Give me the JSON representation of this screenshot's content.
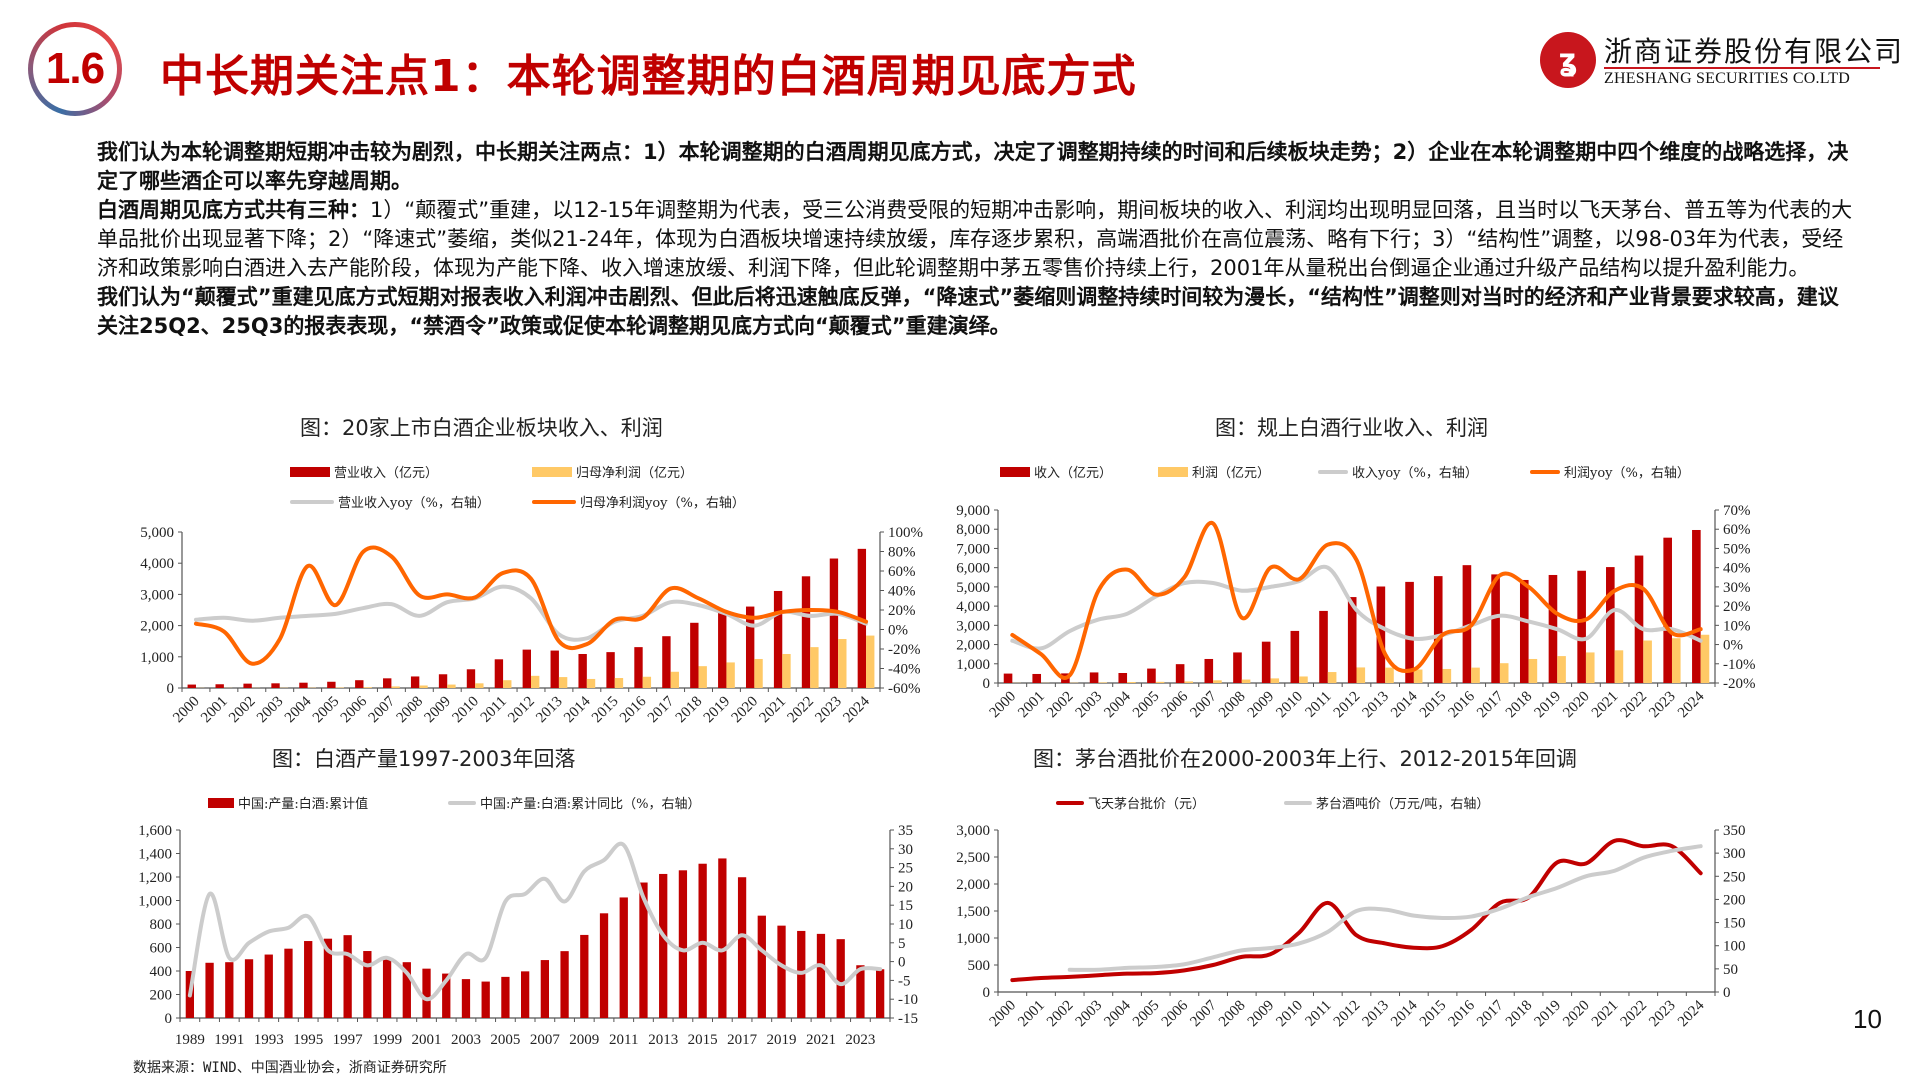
{
  "header": {
    "section_number": "1.6",
    "title": "中长期关注点1：本轮调整期的白酒周期见底方式",
    "logo_cn": "浙商证券股份有限公司",
    "logo_en": "ZHESHANG SECURITIES CO.LTD",
    "logo_icon": "zheshang-logo-icon",
    "accent_color": "#c00000"
  },
  "body": {
    "p1": "我们认为本轮调整期短期冲击较为剧烈，中长期关注两点：1）本轮调整期的白酒周期见底方式，决定了调整期持续的时间和后续板块走势；2）企业在本轮调整期中四个维度的战略选择，决定了哪些酒企可以率先穿越周期。",
    "p2_lead": "白酒周期见底方式共有三种：",
    "p2_rest": "1）“颠覆式”重建，以12-15年调整期为代表，受三公消费受限的短期冲击影响，期间板块的收入、利润均出现明显回落，且当时以飞天茅台、普五等为代表的大单品批价出现显著下降；2）“降速式”萎缩，类似21-24年，体现为白酒板块增速持续放缓，库存逐步累积，高端酒批价在高位震荡、略有下行；3）“结构性”调整，以98-03年为代表，受经济和政策影响白酒进入去产能阶段，体现为产能下降、收入增速放缓、利润下降，但此轮调整期中茅五零售价持续上行，2001年从量税出台倒逼企业通过升级产品结构以提升盈利能力。",
    "p3": "我们认为“颠覆式”重建见底方式短期对报表收入利润冲击剧烈、但此后将迅速触底反弹，“降速式”萎缩则调整持续时间较为漫长，“结构性”调整则对当时的经济和产业背景要求较高，建议关注25Q2、25Q3的报表表现，“禁酒令”政策或促使本轮调整期见底方式向“颠覆式”重建演绎。"
  },
  "footer": {
    "source": "数据来源：WIND、中国酒业协会，浙商证券研究所",
    "page_number": "10"
  },
  "chart_data": [
    {
      "type": "bar+line",
      "title": "图：20家上市白酒企业板块收入、利润",
      "legend": [
        "营业收入（亿元）",
        "归母净利润（亿元）",
        "营业收入yoy（%，右轴）",
        "归母净利润yoy（%，右轴）"
      ],
      "colors": [
        "#c00000",
        "#ffc966",
        "#cccccc",
        "#ff6600"
      ],
      "categories": [
        "2000",
        "2001",
        "2002",
        "2003",
        "2004",
        "2005",
        "2006",
        "2007",
        "2008",
        "2009",
        "2010",
        "2011",
        "2012",
        "2013",
        "2014",
        "2015",
        "2016",
        "2017",
        "2018",
        "2019",
        "2020",
        "2021",
        "2022",
        "2023",
        "2024"
      ],
      "series": [
        {
          "name": "营业收入（亿元）",
          "axis": "left",
          "kind": "bar",
          "values": [
            110,
            120,
            140,
            150,
            170,
            200,
            250,
            310,
            370,
            440,
            600,
            920,
            1230,
            1200,
            1090,
            1150,
            1310,
            1660,
            2090,
            2420,
            2610,
            3110,
            3580,
            4150,
            4460
          ]
        },
        {
          "name": "归母净利润（亿元）",
          "axis": "left",
          "kind": "bar",
          "values": [
            5,
            5,
            5,
            8,
            10,
            15,
            25,
            50,
            80,
            110,
            150,
            250,
            390,
            350,
            290,
            320,
            360,
            520,
            700,
            820,
            930,
            1090,
            1310,
            1570,
            1680
          ]
        },
        {
          "name": "营业收入yoy（%，右轴）",
          "axis": "right",
          "kind": "line",
          "values": [
            10,
            12,
            9,
            12,
            14,
            16,
            22,
            26,
            14,
            28,
            32,
            44,
            32,
            -5,
            -9,
            8,
            14,
            28,
            25,
            16,
            4,
            18,
            14,
            16,
            6
          ]
        },
        {
          "name": "归母净利润yoy（%，右轴）",
          "axis": "right",
          "kind": "line",
          "values": [
            6,
            -2,
            -35,
            -10,
            65,
            25,
            80,
            75,
            35,
            36,
            33,
            58,
            52,
            -12,
            -15,
            10,
            12,
            42,
            32,
            18,
            12,
            18,
            20,
            18,
            8
          ]
        }
      ],
      "ylim_left": [
        0,
        5000
      ],
      "yticks_left": [
        "0",
        "1,000",
        "2,000",
        "3,000",
        "4,000",
        "5,000"
      ],
      "ylim_right": [
        -60,
        100
      ],
      "yticks_right": [
        "-60%",
        "-40%",
        "-20%",
        "0%",
        "20%",
        "40%",
        "60%",
        "80%",
        "100%"
      ]
    },
    {
      "type": "bar+line",
      "title": "图：规上白酒行业收入、利润",
      "legend": [
        "收入（亿元）",
        "利润（亿元）",
        "收入yoy（%，右轴）",
        "利润yoy（%，右轴）"
      ],
      "colors": [
        "#c00000",
        "#ffc966",
        "#cccccc",
        "#ff6600"
      ],
      "categories": [
        "2000",
        "2001",
        "2002",
        "2003",
        "2004",
        "2005",
        "2006",
        "2007",
        "2008",
        "2009",
        "2010",
        "2011",
        "2012",
        "2013",
        "2014",
        "2015",
        "2016",
        "2017",
        "2018",
        "2019",
        "2020",
        "2021",
        "2022",
        "2023",
        "2024"
      ],
      "series": [
        {
          "name": "收入（亿元）",
          "axis": "left",
          "kind": "bar",
          "values": [
            490,
            470,
            500,
            550,
            520,
            750,
            980,
            1250,
            1590,
            2150,
            2710,
            3750,
            4470,
            5020,
            5260,
            5560,
            6130,
            5650,
            5360,
            5620,
            5840,
            6030,
            6630,
            7560,
            7960
          ]
        },
        {
          "name": "利润（亿元）",
          "axis": "left",
          "kind": "bar",
          "values": [
            10,
            10,
            15,
            30,
            50,
            60,
            80,
            140,
            180,
            240,
            340,
            570,
            810,
            800,
            700,
            730,
            800,
            1030,
            1250,
            1400,
            1590,
            1700,
            2210,
            2330,
            2510
          ]
        },
        {
          "name": "收入yoy（%，右轴）",
          "axis": "right",
          "kind": "line",
          "values": [
            2,
            -2,
            7,
            13,
            16,
            25,
            32,
            32,
            28,
            30,
            33,
            40,
            18,
            8,
            3,
            5,
            10,
            15,
            12,
            8,
            3,
            18,
            8,
            8,
            2
          ]
        },
        {
          "name": "利润yoy（%，右轴）",
          "axis": "right",
          "kind": "line",
          "values": [
            5,
            -5,
            -16,
            28,
            39,
            26,
            35,
            63,
            14,
            40,
            34,
            52,
            44,
            -5,
            -13,
            5,
            10,
            36,
            30,
            16,
            13,
            28,
            29,
            6,
            8
          ]
        }
      ],
      "ylim_left": [
        0,
        9000
      ],
      "yticks_left": [
        "0",
        "1,000",
        "2,000",
        "3,000",
        "4,000",
        "5,000",
        "6,000",
        "7,000",
        "8,000",
        "9,000"
      ],
      "ylim_right": [
        -20,
        70
      ],
      "yticks_right": [
        "-20%",
        "-10%",
        "0%",
        "10%",
        "20%",
        "30%",
        "40%",
        "50%",
        "60%",
        "70%"
      ]
    },
    {
      "type": "bar+line",
      "title": "图：白酒产量1997-2003年回落",
      "legend": [
        "中国:产量:白酒:累计值",
        "中国:产量:白酒:累计同比（%，右轴）"
      ],
      "colors": [
        "#c00000",
        "#cccccc"
      ],
      "categories": [
        "1989",
        "1990",
        "1991",
        "1992",
        "1993",
        "1994",
        "1995",
        "1996",
        "1997",
        "1998",
        "1999",
        "2000",
        "2001",
        "2002",
        "2003",
        "2004",
        "2005",
        "2006",
        "2007",
        "2008",
        "2009",
        "2010",
        "2011",
        "2012",
        "2013",
        "2014",
        "2015",
        "2016",
        "2017",
        "2018",
        "2019",
        "2020",
        "2021",
        "2022",
        "2023",
        "2024"
      ],
      "xtick_labels": [
        "1989",
        "1991",
        "1993",
        "1995",
        "1997",
        "1999",
        "2001",
        "2003",
        "2005",
        "2007",
        "2009",
        "2011",
        "2013",
        "2015",
        "2017",
        "2019",
        "2021",
        "2023"
      ],
      "series": [
        {
          "name": "中国:产量:白酒:累计值",
          "axis": "left",
          "kind": "bar",
          "values": [
            400,
            470,
            475,
            500,
            540,
            590,
            655,
            675,
            705,
            570,
            500,
            475,
            420,
            378,
            331,
            310,
            350,
            397,
            493,
            569,
            707,
            891,
            1026,
            1153,
            1226,
            1257,
            1313,
            1358,
            1198,
            871,
            786,
            741,
            716,
            671,
            449,
            415
          ]
        },
        {
          "name": "中国:产量:白酒:累计同比（%，右轴）",
          "axis": "right",
          "kind": "line",
          "values": [
            -9,
            18,
            1,
            5,
            8,
            9,
            12,
            3,
            2,
            -1,
            1,
            -3,
            -10,
            -5,
            2,
            1,
            16,
            18,
            22,
            16,
            24,
            27,
            31,
            17,
            7,
            3,
            5,
            3,
            7,
            3,
            -1,
            -3,
            -1,
            -6,
            -2,
            -2
          ]
        }
      ],
      "ylim_left": [
        0,
        1600
      ],
      "yticks_left": [
        "0",
        "200",
        "400",
        "600",
        "800",
        "1,000",
        "1,200",
        "1,400",
        "1,600"
      ],
      "ylim_right": [
        -15,
        35
      ],
      "yticks_right": [
        "-15",
        "-10",
        "-5",
        "0",
        "5",
        "10",
        "15",
        "20",
        "25",
        "30",
        "35"
      ]
    },
    {
      "type": "line",
      "title": "图：茅台酒批价在2000-2003年上行、2012-2015年回调",
      "legend": [
        "飞天茅台批价（元）",
        "茅台酒吨价（万元/吨，右轴）"
      ],
      "colors": [
        "#c00000",
        "#cccccc"
      ],
      "categories": [
        "2000",
        "2001",
        "2002",
        "2003",
        "2004",
        "2005",
        "2006",
        "2007",
        "2008",
        "2009",
        "2010",
        "2011",
        "2012",
        "2013",
        "2014",
        "2015",
        "2016",
        "2017",
        "2018",
        "2019",
        "2020",
        "2021",
        "2022",
        "2023",
        "2024"
      ],
      "series": [
        {
          "name": "飞天茅台批价（元）",
          "axis": "left",
          "values": [
            220,
            260,
            280,
            310,
            340,
            350,
            400,
            500,
            650,
            700,
            1100,
            1650,
            1050,
            900,
            820,
            850,
            1150,
            1650,
            1750,
            2400,
            2380,
            2800,
            2700,
            2700,
            2200
          ]
        },
        {
          "name": "茅台酒吨价（万元/吨，右轴）",
          "axis": "right",
          "values": [
            null,
            null,
            48,
            48,
            52,
            54,
            60,
            75,
            90,
            95,
            105,
            130,
            175,
            178,
            165,
            160,
            163,
            180,
            205,
            225,
            250,
            262,
            290,
            305,
            315
          ]
        }
      ],
      "ylim_left": [
        0,
        3000
      ],
      "yticks_left": [
        "0",
        "500",
        "1,000",
        "1,500",
        "2,000",
        "2,500",
        "3,000"
      ],
      "ylim_right": [
        0,
        350
      ],
      "yticks_right": [
        "0",
        "50",
        "100",
        "150",
        "200",
        "250",
        "300",
        "350"
      ]
    }
  ]
}
